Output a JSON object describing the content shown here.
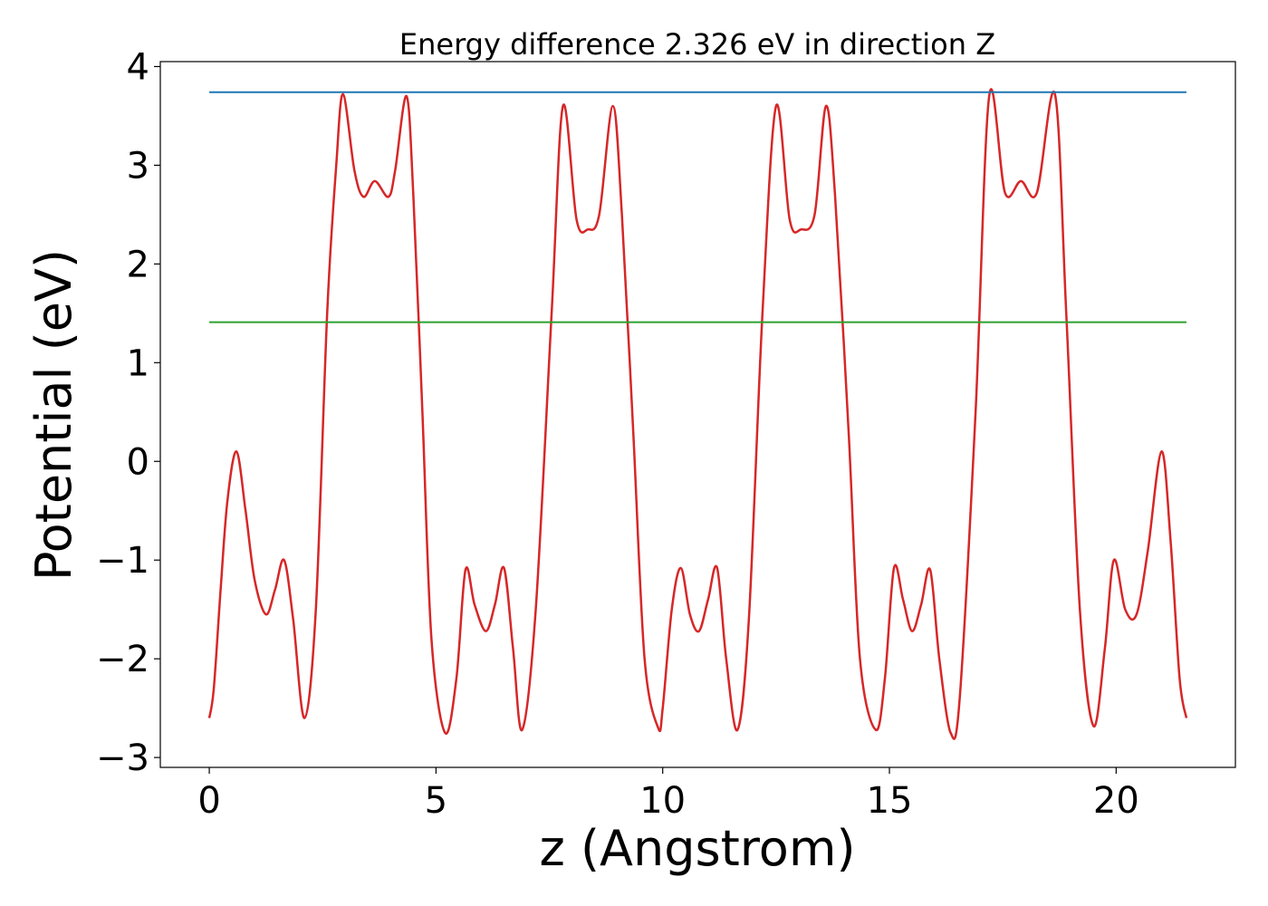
{
  "chart_data": {
    "type": "line",
    "title": "Energy difference 2.326 eV in direction Z",
    "xlabel": "z (Angstrom)",
    "ylabel": "Potential (eV)",
    "xlim": [
      -1.08,
      22.63
    ],
    "ylim": [
      -3.1,
      4.05
    ],
    "xticks": [
      0,
      5,
      10,
      15,
      20
    ],
    "yticks": [
      -3,
      -2,
      -1,
      0,
      1,
      2,
      3,
      4
    ],
    "tick_labels_x": [
      "0",
      "5",
      "10",
      "15",
      "20"
    ],
    "tick_labels_y": [
      "−3",
      "−2",
      "−1",
      "0",
      "1",
      "2",
      "3",
      "4"
    ],
    "grid": false,
    "series": [
      {
        "color": "#d62728",
        "x": [
          0.0,
          0.1,
          0.25,
          0.4,
          0.6,
          0.8,
          1.0,
          1.25,
          1.45,
          1.65,
          1.85,
          2.1,
          2.35,
          2.6,
          2.8,
          2.95,
          3.2,
          3.4,
          3.65,
          3.95,
          4.1,
          4.35,
          4.5,
          4.7,
          4.9,
          5.2,
          5.45,
          5.65,
          5.85,
          6.1,
          6.3,
          6.5,
          6.7,
          6.9,
          7.2,
          7.55,
          7.8,
          8.1,
          8.35,
          8.6,
          8.9,
          9.1,
          9.35,
          9.6,
          9.9,
          10.0,
          10.2,
          10.4,
          10.6,
          10.8,
          11.0,
          11.2,
          11.4,
          11.65,
          11.9,
          12.2,
          12.5,
          12.8,
          13.05,
          13.35,
          13.6,
          13.8,
          14.1,
          14.35,
          14.7,
          14.9,
          15.1,
          15.3,
          15.5,
          15.7,
          15.9,
          16.1,
          16.35,
          16.55,
          16.9,
          17.2,
          17.55,
          17.9,
          18.25,
          18.65,
          18.9,
          19.2,
          19.5,
          19.75,
          19.95,
          20.2,
          20.45,
          20.7,
          21.0,
          21.2,
          21.4,
          21.55
        ],
        "y": [
          -2.6,
          -2.3,
          -1.3,
          -0.4,
          0.1,
          -0.5,
          -1.2,
          -1.55,
          -1.3,
          -1.0,
          -1.6,
          -2.6,
          -1.5,
          1.5,
          3.0,
          3.72,
          2.95,
          2.68,
          2.84,
          2.68,
          2.95,
          3.7,
          2.7,
          0.5,
          -1.8,
          -2.75,
          -2.2,
          -1.1,
          -1.45,
          -1.72,
          -1.45,
          -1.08,
          -1.9,
          -2.72,
          -1.5,
          1.5,
          3.6,
          2.45,
          2.35,
          2.5,
          3.6,
          2.5,
          0.3,
          -2.0,
          -2.7,
          -2.5,
          -1.5,
          -1.08,
          -1.55,
          -1.72,
          -1.4,
          -1.08,
          -2.0,
          -2.72,
          -1.6,
          1.5,
          3.6,
          2.45,
          2.35,
          2.5,
          3.6,
          2.7,
          0.3,
          -2.0,
          -2.72,
          -2.2,
          -1.08,
          -1.4,
          -1.72,
          -1.45,
          -1.1,
          -2.0,
          -2.75,
          -2.4,
          0.5,
          3.7,
          2.72,
          2.84,
          2.72,
          3.72,
          1.5,
          -1.5,
          -2.68,
          -1.9,
          -1.0,
          -1.5,
          -1.55,
          -0.9,
          0.1,
          -0.8,
          -2.2,
          -2.6
        ]
      },
      {
        "color": "#1f77b4",
        "x": [
          0,
          21.55
        ],
        "y": [
          3.74,
          3.74
        ]
      },
      {
        "color": "#2ca02c",
        "x": [
          0,
          21.55
        ],
        "y": [
          1.41,
          1.41
        ]
      }
    ]
  }
}
